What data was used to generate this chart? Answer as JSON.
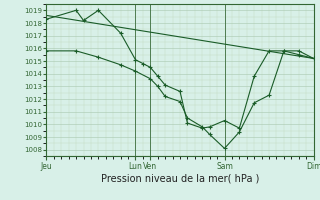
{
  "background_color": "#d8f0e8",
  "line_color": "#1a5c28",
  "xlabel": "Pression niveau de la mer( hPa )",
  "ylim": [
    1007.5,
    1019.5
  ],
  "yticks": [
    1008,
    1009,
    1010,
    1011,
    1012,
    1013,
    1014,
    1015,
    1016,
    1017,
    1018,
    1019
  ],
  "xtick_labels": [
    "Jeu",
    "Lun",
    "Ven",
    "Sam",
    "Dim"
  ],
  "xtick_positions": [
    0,
    6,
    7,
    12,
    18
  ],
  "xlim": [
    0,
    18
  ],
  "vlines_x": [
    6,
    7,
    12
  ],
  "series1_x": [
    0,
    2,
    2.5,
    3.5,
    5,
    6,
    6.5,
    7,
    7.5,
    8,
    9,
    9.5,
    10.5,
    11,
    12,
    13,
    14,
    15,
    16,
    17,
    18
  ],
  "series1_y": [
    1018.3,
    1019.0,
    1018.2,
    1019.0,
    1017.2,
    1015.1,
    1014.8,
    1014.5,
    1013.8,
    1013.1,
    1012.6,
    1010.1,
    1009.7,
    1009.8,
    1010.3,
    1009.7,
    1013.8,
    1015.8,
    1015.8,
    1015.8,
    1015.2
  ],
  "series2_x": [
    0,
    2,
    3.5,
    5,
    6,
    7,
    7.5,
    8,
    9,
    9.5,
    10.5,
    11,
    12,
    13,
    14,
    15,
    16,
    17,
    18
  ],
  "series2_y": [
    1015.8,
    1015.8,
    1015.3,
    1014.7,
    1014.2,
    1013.6,
    1013.0,
    1012.2,
    1011.8,
    1010.5,
    1009.8,
    1009.2,
    1008.1,
    1009.4,
    1011.7,
    1012.3,
    1015.8,
    1015.5,
    1015.2
  ],
  "trend_x": [
    0,
    18
  ],
  "trend_y": [
    1018.6,
    1015.2
  ],
  "marker_size": 2.0,
  "linewidth": 0.8,
  "vline_color": "#336633",
  "grid_major_color": "#a8c8b0",
  "grid_minor_color": "#c0d8c0",
  "tick_color": "#336633",
  "label_color": "#336633"
}
